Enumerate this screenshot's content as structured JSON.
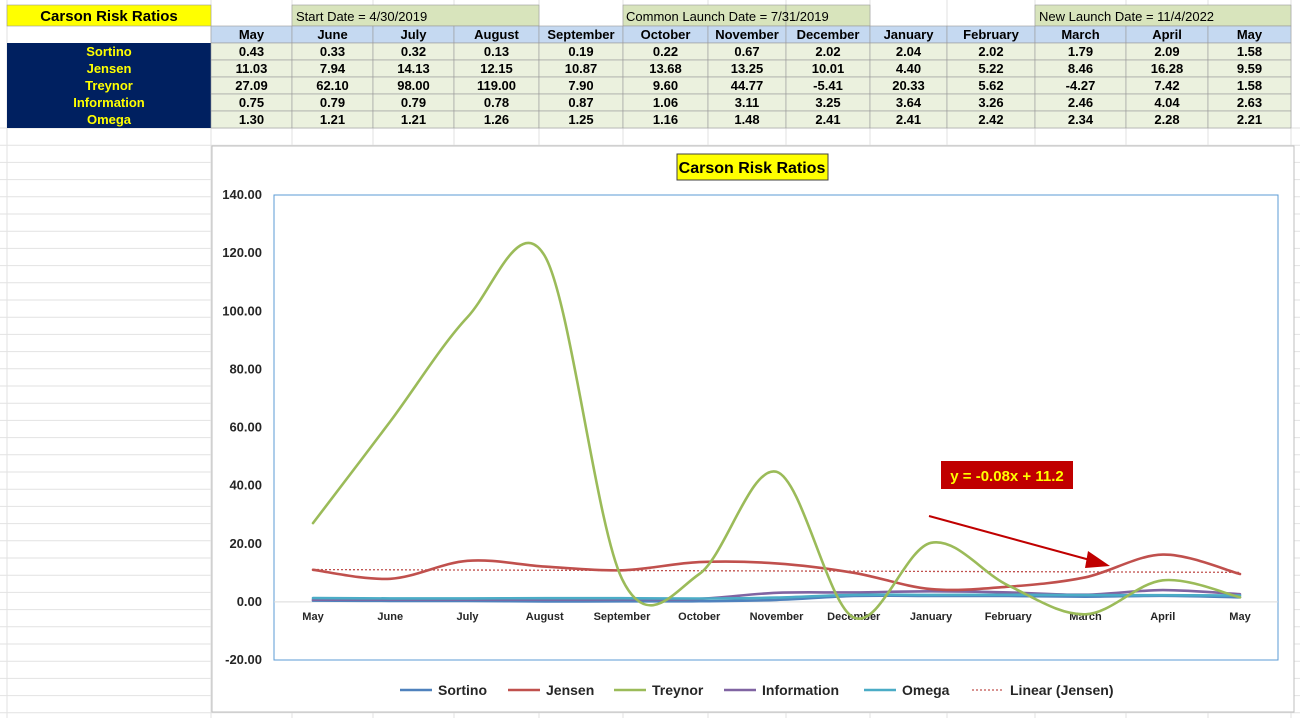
{
  "sheet": {
    "title": "Carson Risk Ratios",
    "start_date_label": "Start Date = 4/30/2019",
    "common_launch_label": "Common Launch Date = 7/31/2019",
    "new_launch_label": "New Launch Date = 11/4/2022",
    "months": [
      "May",
      "June",
      "July",
      "August",
      "September",
      "October",
      "November",
      "December",
      "January",
      "February",
      "March",
      "April",
      "May"
    ],
    "rows": [
      {
        "name": "Sortino",
        "values": [
          "0.43",
          "0.33",
          "0.32",
          "0.13",
          "0.19",
          "0.22",
          "0.67",
          "2.02",
          "2.04",
          "2.02",
          "1.79",
          "2.09",
          "1.58"
        ]
      },
      {
        "name": "Jensen",
        "values": [
          "11.03",
          "7.94",
          "14.13",
          "12.15",
          "10.87",
          "13.68",
          "13.25",
          "10.01",
          "4.40",
          "5.22",
          "8.46",
          "16.28",
          "9.59"
        ]
      },
      {
        "name": "Treynor",
        "values": [
          "27.09",
          "62.10",
          "98.00",
          "119.00",
          "7.90",
          "9.60",
          "44.77",
          "-5.41",
          "20.33",
          "5.62",
          "-4.27",
          "7.42",
          "1.58"
        ]
      },
      {
        "name": "Information",
        "values": [
          "0.75",
          "0.79",
          "0.79",
          "0.78",
          "0.87",
          "1.06",
          "3.11",
          "3.25",
          "3.64",
          "3.26",
          "2.46",
          "4.04",
          "2.63"
        ]
      },
      {
        "name": "Omega",
        "values": [
          "1.30",
          "1.21",
          "1.21",
          "1.26",
          "1.25",
          "1.16",
          "1.48",
          "2.41",
          "2.41",
          "2.42",
          "2.34",
          "2.28",
          "2.21"
        ]
      }
    ]
  },
  "colors": {
    "header_yellow": "#ffff00",
    "header_green": "#d8e4bc",
    "month_header_blue": "#c5d9f1",
    "row_label_navy": "#002060",
    "row_label_text": "#ffff00",
    "cell_bg": "#ebf1de",
    "equation_bg": "#c00000",
    "equation_text": "#ffff00",
    "arrow": "#c00000"
  },
  "chart_data": {
    "type": "line",
    "title": "Carson Risk Ratios",
    "categories": [
      "May",
      "June",
      "July",
      "August",
      "September",
      "October",
      "November",
      "December",
      "January",
      "February",
      "March",
      "April",
      "May"
    ],
    "ylim": [
      -20,
      140
    ],
    "yticks": [
      "-20.00",
      "0.00",
      "20.00",
      "40.00",
      "60.00",
      "80.00",
      "100.00",
      "120.00",
      "140.00"
    ],
    "ytick_values": [
      -20,
      0,
      20,
      40,
      60,
      80,
      100,
      120,
      140
    ],
    "series": [
      {
        "name": "Sortino",
        "color": "#4f81bd",
        "values": [
          0.43,
          0.33,
          0.32,
          0.13,
          0.19,
          0.22,
          0.67,
          2.02,
          2.04,
          2.02,
          1.79,
          2.09,
          1.58
        ]
      },
      {
        "name": "Jensen",
        "color": "#c0504d",
        "values": [
          11.03,
          7.94,
          14.13,
          12.15,
          10.87,
          13.68,
          13.25,
          10.01,
          4.4,
          5.22,
          8.46,
          16.28,
          9.59
        ]
      },
      {
        "name": "Treynor",
        "color": "#9bbb59",
        "values": [
          27.09,
          62.1,
          98.0,
          119.0,
          7.9,
          9.6,
          44.77,
          -5.41,
          20.33,
          5.62,
          -4.27,
          7.42,
          1.58
        ]
      },
      {
        "name": "Information",
        "color": "#8064a2",
        "values": [
          0.75,
          0.79,
          0.79,
          0.78,
          0.87,
          1.06,
          3.11,
          3.25,
          3.64,
          3.26,
          2.46,
          4.04,
          2.63
        ]
      },
      {
        "name": "Omega",
        "color": "#4bacc6",
        "values": [
          1.3,
          1.21,
          1.21,
          1.26,
          1.25,
          1.16,
          1.48,
          2.41,
          2.41,
          2.42,
          2.34,
          2.28,
          2.21
        ]
      }
    ],
    "trendline": {
      "name": "Linear (Jensen)",
      "color": "#c0504d",
      "slope": -0.08,
      "intercept": 11.2
    },
    "equation_label": "y = -0.08x + 11.2",
    "legend_position": "bottom",
    "grid": false
  }
}
